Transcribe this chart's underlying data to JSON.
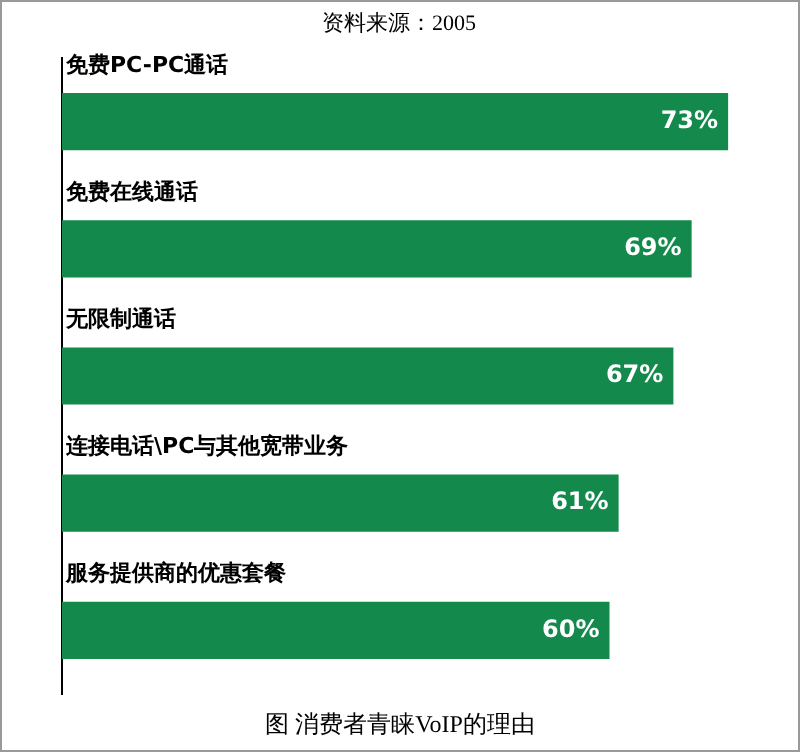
{
  "chart_data": {
    "type": "bar",
    "orientation": "horizontal",
    "title": "图   消费者青睐VoIP的理由",
    "annotations": [
      "资料来源：2005"
    ],
    "categories": [
      "免费PC-PC通话",
      "免费在线通话",
      "无限制通话",
      "连接电话\\PC与其他宽带业务",
      "服务提供商的优惠套餐"
    ],
    "values": [
      73,
      69,
      67,
      61,
      60
    ],
    "color": "#138a4c",
    "value_labels": [
      "73%",
      "69%",
      "67%",
      "61%",
      "60%"
    ]
  }
}
